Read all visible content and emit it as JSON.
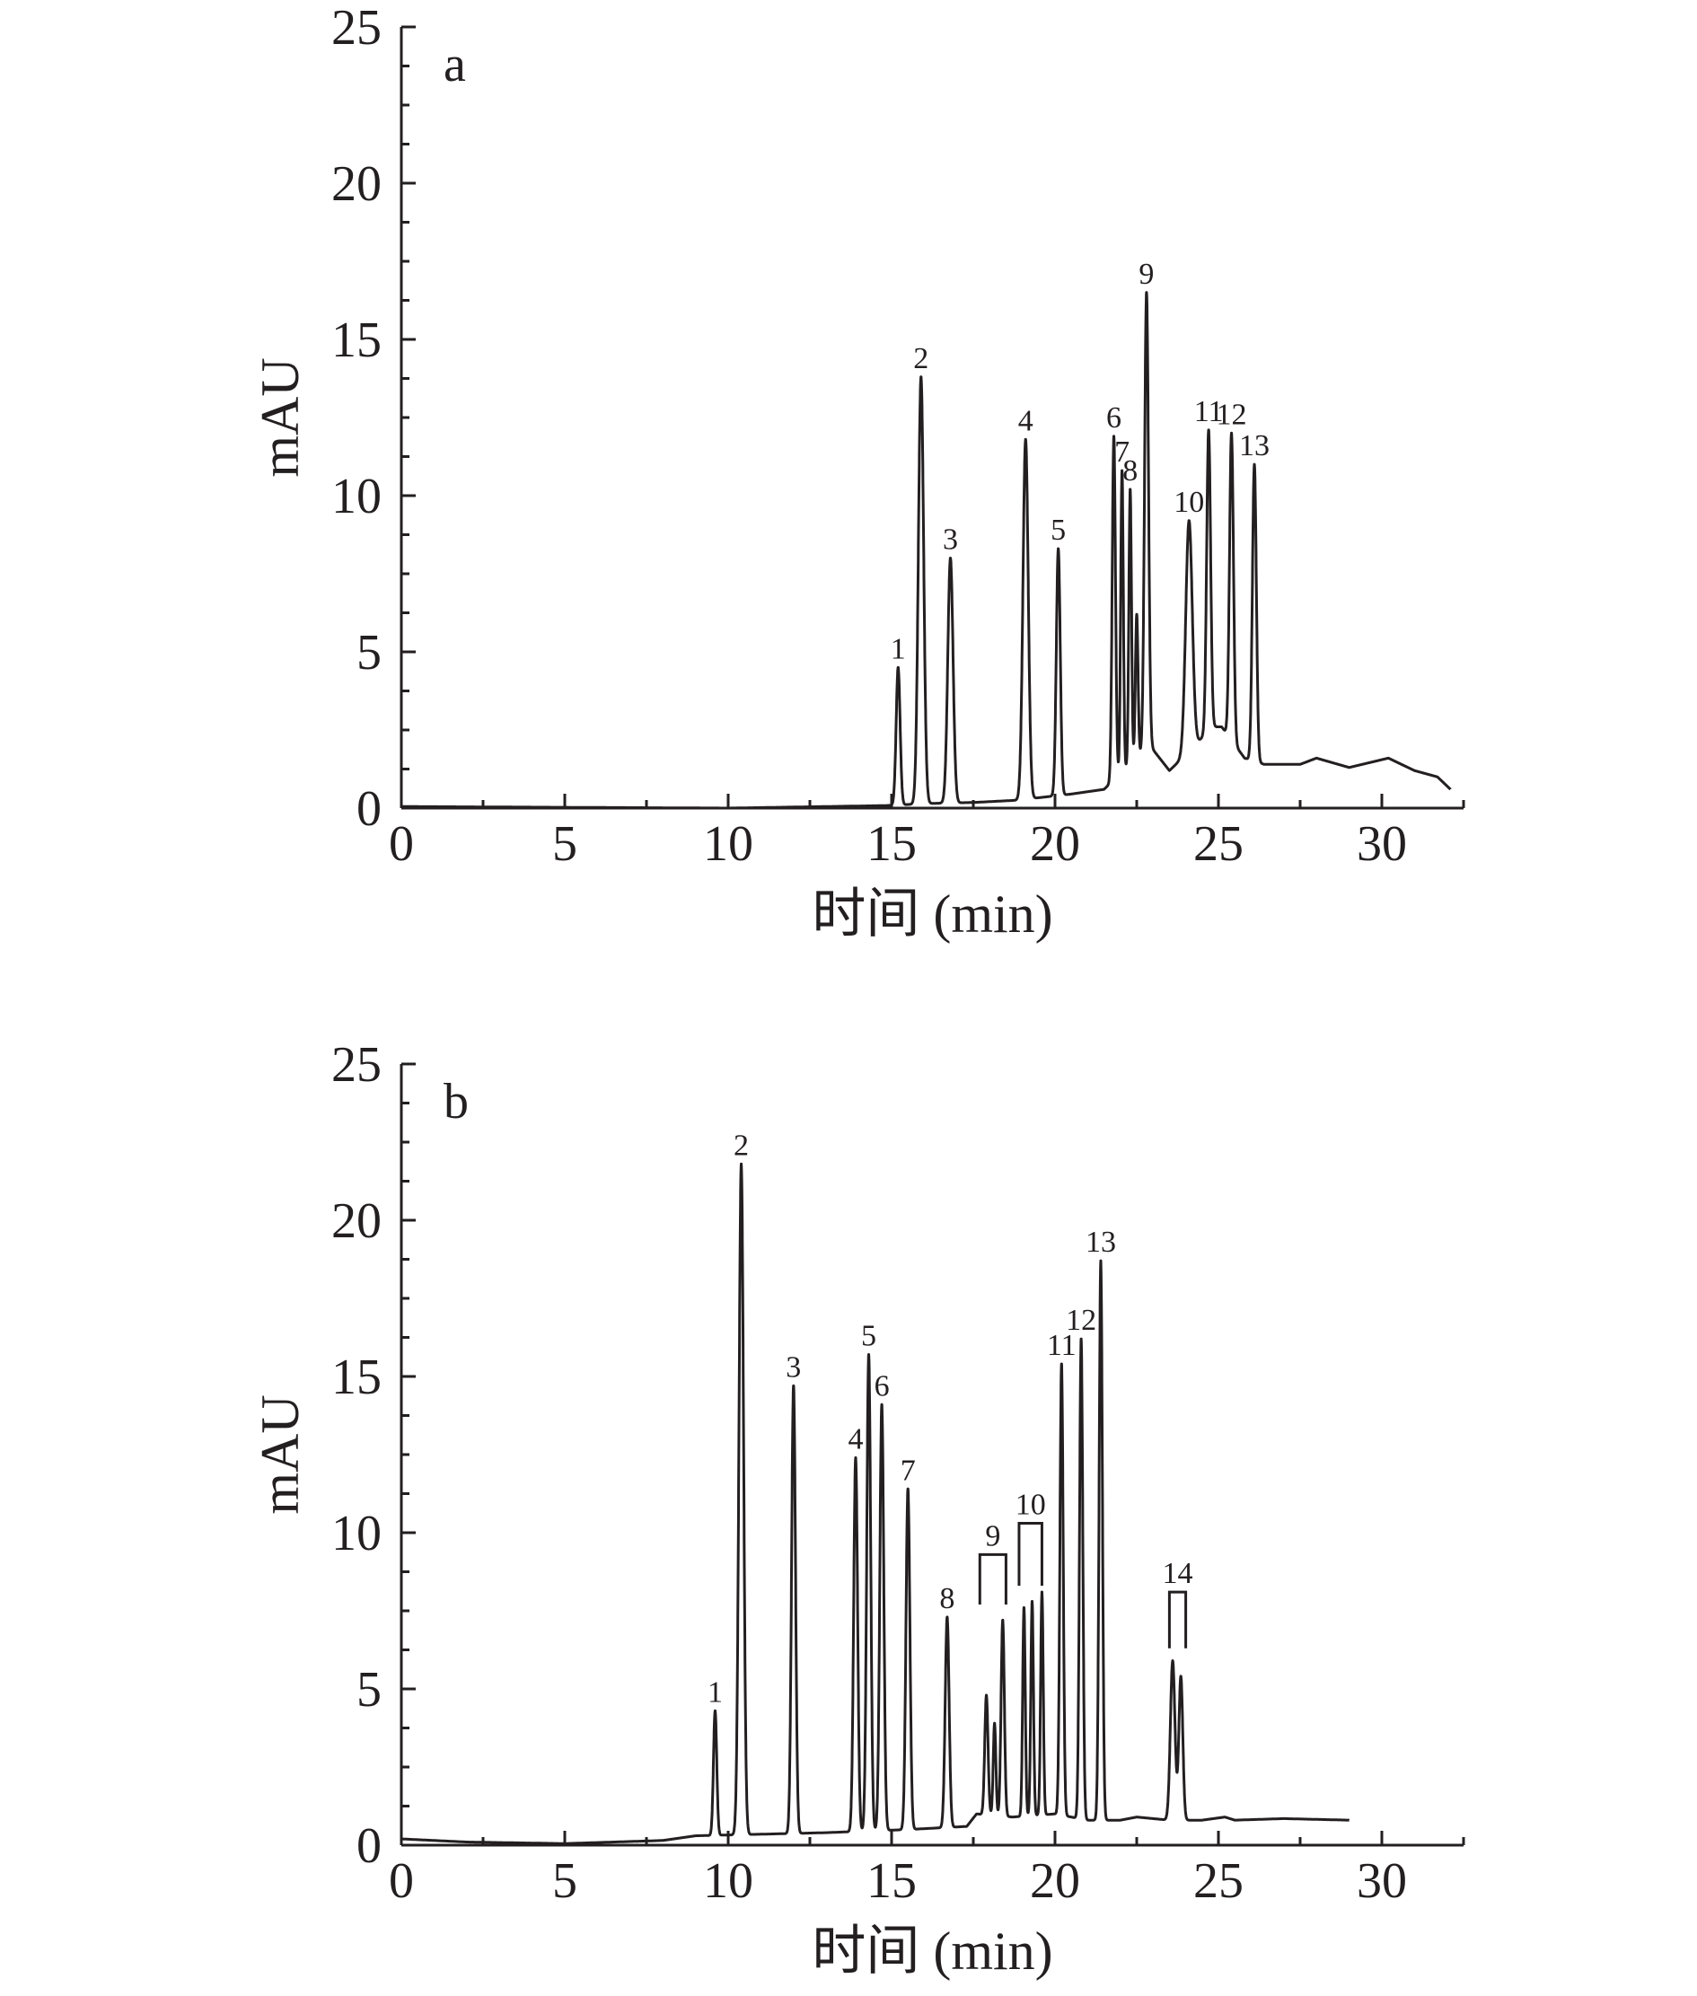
{
  "chart_data": [
    {
      "type": "line",
      "panel": "a",
      "xlabel": "时间 (min)",
      "ylabel": "mAU",
      "xlim": [
        0,
        32.5
      ],
      "ylim": [
        0,
        25
      ],
      "x_ticks": [
        "0",
        "5",
        "10",
        "15",
        "20",
        "25",
        "30"
      ],
      "y_ticks": [
        "0",
        "5",
        "10",
        "15",
        "20",
        "25"
      ],
      "grid": false,
      "baseline": [
        [
          0,
          0.05
        ],
        [
          10,
          0.0
        ],
        [
          14.8,
          0.08
        ],
        [
          16.2,
          0.15
        ],
        [
          17.5,
          0.18
        ],
        [
          18.8,
          0.25
        ],
        [
          20.5,
          0.45
        ],
        [
          21.5,
          0.6
        ],
        [
          22.9,
          2.0
        ],
        [
          23.5,
          1.2
        ],
        [
          24.2,
          1.9
        ],
        [
          24.8,
          2.6
        ],
        [
          25.1,
          2.6
        ],
        [
          25.8,
          1.6
        ],
        [
          26.4,
          1.4
        ],
        [
          27.5,
          1.4
        ],
        [
          28.0,
          1.6
        ],
        [
          29.0,
          1.3
        ],
        [
          30.2,
          1.6
        ],
        [
          31.0,
          1.2
        ],
        [
          31.7,
          1.0
        ],
        [
          32.1,
          0.6
        ]
      ],
      "peaks": [
        {
          "label": "1",
          "x": 15.2,
          "y": 4.5,
          "w": 0.06
        },
        {
          "label": "2",
          "x": 15.9,
          "y": 13.8,
          "w": 0.08
        },
        {
          "label": "3",
          "x": 16.8,
          "y": 8.0,
          "w": 0.08
        },
        {
          "label": "4",
          "x": 19.1,
          "y": 11.8,
          "w": 0.08
        },
        {
          "label": "5",
          "x": 20.1,
          "y": 8.3,
          "w": 0.06
        },
        {
          "label": "6",
          "x": 21.8,
          "y": 11.9,
          "w": 0.05
        },
        {
          "label": "7",
          "x": 22.05,
          "y": 10.8,
          "w": 0.04
        },
        {
          "label": "8",
          "x": 22.3,
          "y": 10.2,
          "w": 0.04
        },
        {
          "label": "",
          "x": 22.5,
          "y": 6.2,
          "w": 0.04
        },
        {
          "label": "9",
          "x": 22.8,
          "y": 16.5,
          "w": 0.06
        },
        {
          "label": "10",
          "x": 24.1,
          "y": 9.2,
          "w": 0.1
        },
        {
          "label": "11",
          "x": 24.7,
          "y": 12.1,
          "w": 0.06
        },
        {
          "label": "12",
          "x": 25.4,
          "y": 12.0,
          "w": 0.06
        },
        {
          "label": "13",
          "x": 26.1,
          "y": 11.0,
          "w": 0.06
        }
      ],
      "brackets": []
    },
    {
      "type": "line",
      "panel": "b",
      "xlabel": "时间 (min)",
      "ylabel": "mAU",
      "xlim": [
        0,
        32.5
      ],
      "ylim": [
        0,
        25
      ],
      "x_ticks": [
        "0",
        "5",
        "10",
        "15",
        "20",
        "25",
        "30"
      ],
      "y_ticks": [
        "0",
        "5",
        "10",
        "15",
        "20",
        "25"
      ],
      "grid": false,
      "baseline": [
        [
          0,
          0.2
        ],
        [
          2,
          0.1
        ],
        [
          5,
          0.05
        ],
        [
          8,
          0.15
        ],
        [
          9,
          0.3
        ],
        [
          11,
          0.35
        ],
        [
          13,
          0.4
        ],
        [
          15.5,
          0.5
        ],
        [
          17.3,
          0.6
        ],
        [
          17.6,
          1.0
        ],
        [
          18.7,
          0.9
        ],
        [
          20.0,
          1.0
        ],
        [
          21.0,
          0.8
        ],
        [
          22.0,
          0.8
        ],
        [
          22.5,
          0.9
        ],
        [
          23.5,
          0.8
        ],
        [
          24.5,
          0.8
        ],
        [
          25.2,
          0.9
        ],
        [
          25.5,
          0.8
        ],
        [
          27.0,
          0.85
        ],
        [
          29.0,
          0.8
        ]
      ],
      "peaks": [
        {
          "label": "1",
          "x": 9.6,
          "y": 4.3,
          "w": 0.05
        },
        {
          "label": "2",
          "x": 10.4,
          "y": 21.8,
          "w": 0.07
        },
        {
          "label": "3",
          "x": 12.0,
          "y": 14.7,
          "w": 0.06
        },
        {
          "label": "4",
          "x": 13.9,
          "y": 12.4,
          "w": 0.06
        },
        {
          "label": "5",
          "x": 14.3,
          "y": 15.7,
          "w": 0.06
        },
        {
          "label": "6",
          "x": 14.7,
          "y": 14.1,
          "w": 0.06
        },
        {
          "label": "7",
          "x": 15.5,
          "y": 11.4,
          "w": 0.06
        },
        {
          "label": "8",
          "x": 16.7,
          "y": 7.3,
          "w": 0.06
        },
        {
          "label": "",
          "x": 17.9,
          "y": 4.8,
          "w": 0.05
        },
        {
          "label": "",
          "x": 18.15,
          "y": 3.9,
          "w": 0.04
        },
        {
          "label": "",
          "x": 18.4,
          "y": 7.2,
          "w": 0.05
        },
        {
          "label": "",
          "x": 19.05,
          "y": 7.6,
          "w": 0.04
        },
        {
          "label": "",
          "x": 19.3,
          "y": 7.8,
          "w": 0.04
        },
        {
          "label": "",
          "x": 19.6,
          "y": 8.1,
          "w": 0.04
        },
        {
          "label": "11",
          "x": 20.2,
          "y": 15.4,
          "w": 0.05
        },
        {
          "label": "12",
          "x": 20.8,
          "y": 16.2,
          "w": 0.05
        },
        {
          "label": "13",
          "x": 21.4,
          "y": 18.7,
          "w": 0.05
        },
        {
          "label": "",
          "x": 23.6,
          "y": 5.9,
          "w": 0.07
        },
        {
          "label": "",
          "x": 23.85,
          "y": 5.4,
          "w": 0.06
        }
      ],
      "brackets": [
        {
          "label": "9",
          "x1": 17.7,
          "x2": 18.5,
          "y_top": 9.3,
          "y_bottom": 7.7
        },
        {
          "label": "10",
          "x1": 18.9,
          "x2": 19.6,
          "y_top": 10.3,
          "y_bottom": 8.3
        },
        {
          "label": "14",
          "x1": 23.5,
          "x2": 24.0,
          "y_top": 8.1,
          "y_bottom": 6.3
        }
      ]
    }
  ]
}
